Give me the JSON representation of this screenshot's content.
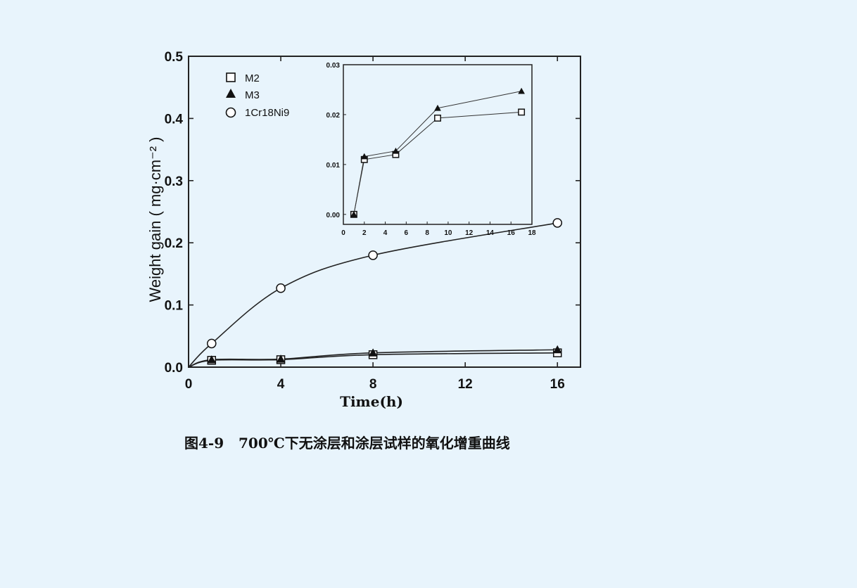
{
  "caption": "图4-9   700℃下无涂层和涂层试样的氧化增重曲线",
  "chart_data": [
    {
      "type": "line",
      "xlabel": "Time(h)",
      "ylabel": "Weight gain ( mg·cm⁻² )",
      "xlim": [
        0,
        17
      ],
      "ylim": [
        0,
        0.5
      ],
      "xticks": [
        0,
        4,
        8,
        12,
        16
      ],
      "yticks": [
        0.0,
        0.1,
        0.2,
        0.3,
        0.4,
        0.5
      ],
      "xtick_labels": [
        "0",
        "4",
        "8",
        "12",
        "16"
      ],
      "ytick_labels": [
        "0.0",
        "0.1",
        "0.2",
        "0.3",
        "0.4",
        "0.5"
      ],
      "grid": false,
      "legend_position": "top-left",
      "series": [
        {
          "name": "M2",
          "marker": "open-square",
          "x": [
            1,
            4,
            8,
            16
          ],
          "y": [
            0.011,
            0.012,
            0.02,
            0.023
          ]
        },
        {
          "name": "M3",
          "marker": "filled-triangle",
          "x": [
            1,
            4,
            8,
            16
          ],
          "y": [
            0.012,
            0.013,
            0.023,
            0.028
          ]
        },
        {
          "name": "1Cr18Ni9",
          "marker": "open-circle",
          "x": [
            1,
            4,
            8,
            16
          ],
          "y": [
            0.038,
            0.127,
            0.18,
            0.232
          ]
        }
      ]
    },
    {
      "type": "line",
      "title": "",
      "xlim": [
        0,
        18
      ],
      "ylim": [
        -0.002,
        0.03
      ],
      "xticks": [
        0,
        2,
        4,
        6,
        8,
        10,
        12,
        14,
        16,
        18
      ],
      "yticks": [
        0.0,
        0.01,
        0.02,
        0.03
      ],
      "xtick_labels": [
        "0",
        "2",
        "4",
        "6",
        "8",
        "10",
        "12",
        "14",
        "16",
        "18"
      ],
      "ytick_labels": [
        "0.00",
        "0.01",
        "0.02",
        "0.03"
      ],
      "grid": false,
      "series": [
        {
          "name": "M2",
          "marker": "open-square",
          "x": [
            1,
            2,
            5,
            9,
            17
          ],
          "y": [
            0.0,
            0.011,
            0.012,
            0.0193,
            0.0205
          ]
        },
        {
          "name": "M3",
          "marker": "filled-triangle",
          "x": [
            1,
            2,
            5,
            9,
            17
          ],
          "y": [
            0.0,
            0.0116,
            0.0127,
            0.0213,
            0.0247
          ]
        }
      ]
    }
  ]
}
